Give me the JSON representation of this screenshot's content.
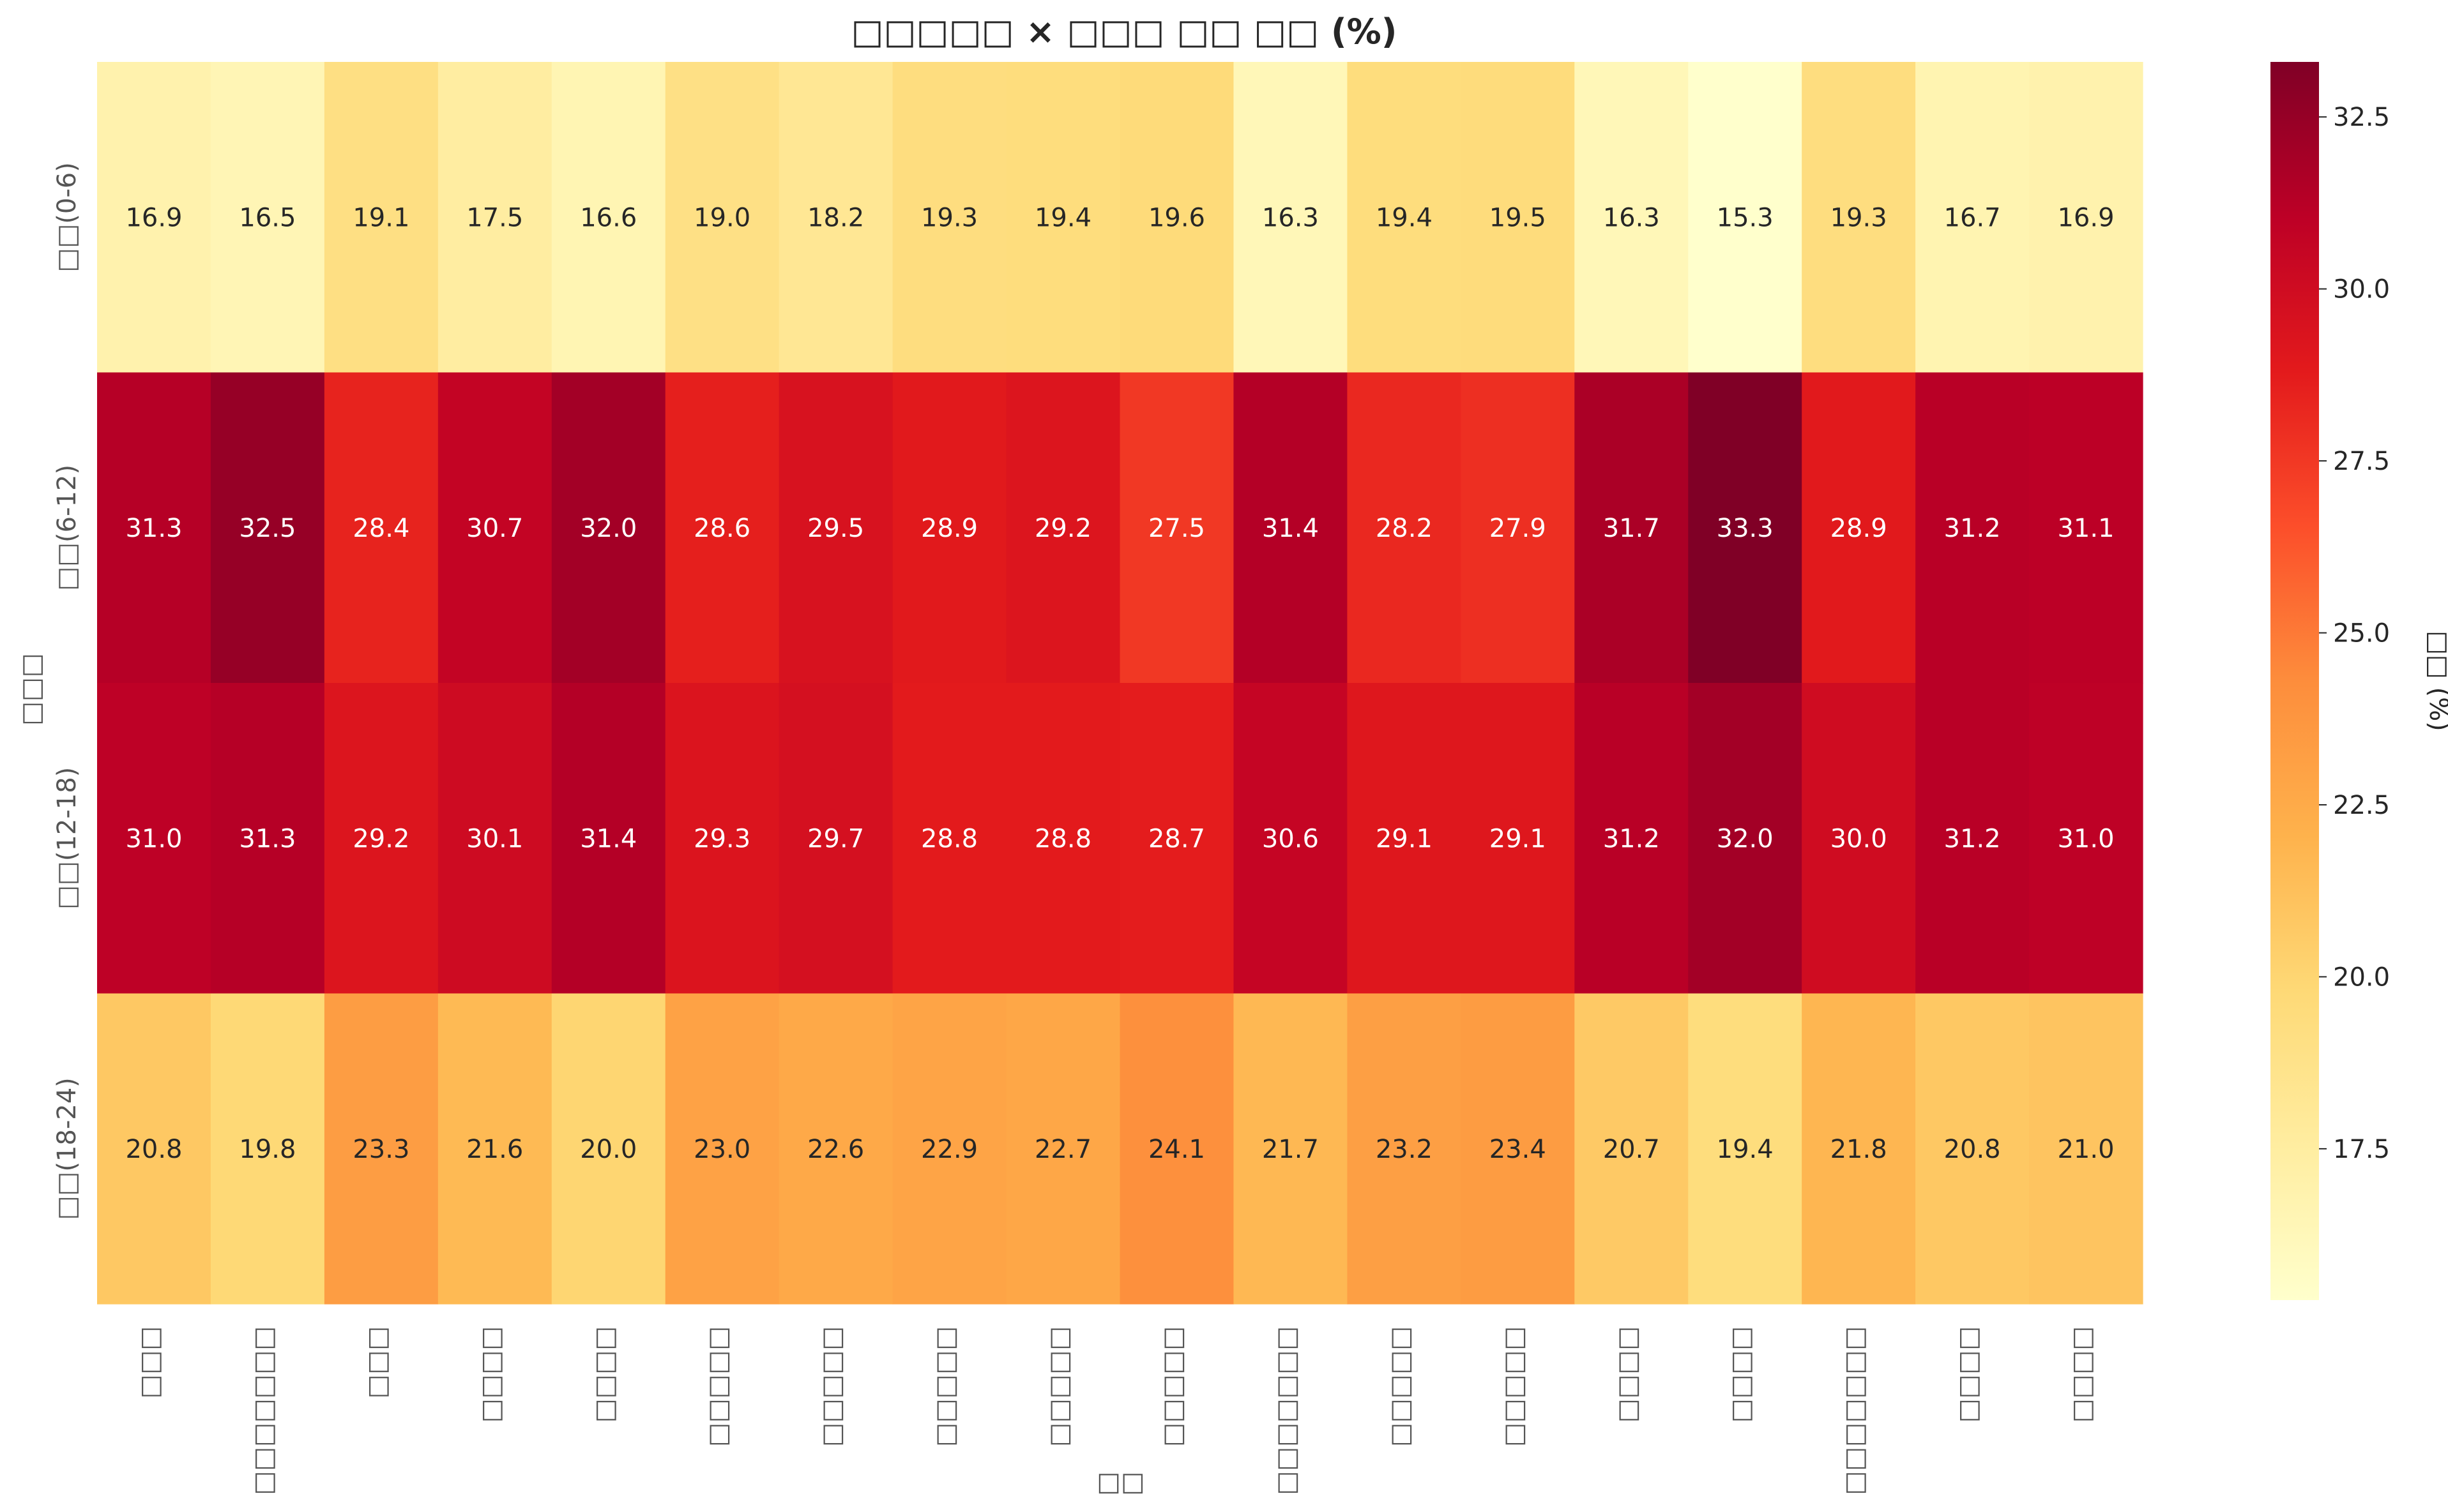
{
  "chart_data": {
    "type": "heatmap",
    "title": "□□□□□ × □□□ □□ □□ (%)",
    "xlabel": "□□",
    "ylabel": "□□□",
    "colorbar_label": "□□ (%)",
    "colormap": "YlOrRd",
    "color_range": [
      15.3,
      33.3
    ],
    "colorbar_ticks": [
      "17.5",
      "20.0",
      "22.5",
      "25.0",
      "27.5",
      "30.0",
      "32.5"
    ],
    "colorbar_tick_values": [
      17.5,
      20.0,
      22.5,
      25.0,
      27.5,
      30.0,
      32.5
    ],
    "columns": [
      "□□□",
      "□□□□□□□",
      "□□□",
      "□□□□",
      "□□□□",
      "□□□□□",
      "□□□□□",
      "□□□□□",
      "□□□□□",
      "□□□□□",
      "□□□□□□□",
      "□□□□□",
      "□□□□□",
      "□□□□",
      "□□□□",
      "□□□□□□□",
      "□□□□",
      "□□□□"
    ],
    "rows": [
      "□□(0-6)",
      "□□(6-12)",
      "□□(12-18)",
      "□□(18-24)"
    ],
    "values": [
      [
        16.9,
        16.5,
        19.1,
        17.5,
        16.6,
        19.0,
        18.2,
        19.3,
        19.4,
        19.6,
        16.3,
        19.4,
        19.5,
        16.3,
        15.3,
        19.3,
        16.7,
        16.9
      ],
      [
        31.3,
        32.5,
        28.4,
        30.7,
        32.0,
        28.6,
        29.5,
        28.9,
        29.2,
        27.5,
        31.4,
        28.2,
        27.9,
        31.7,
        33.3,
        28.9,
        31.2,
        31.1
      ],
      [
        31.0,
        31.3,
        29.2,
        30.1,
        31.4,
        29.3,
        29.7,
        28.8,
        28.8,
        28.7,
        30.6,
        29.1,
        29.1,
        31.2,
        32.0,
        30.0,
        31.2,
        31.0
      ],
      [
        20.8,
        19.8,
        23.3,
        21.6,
        20.0,
        23.0,
        22.6,
        22.9,
        22.7,
        24.1,
        21.7,
        23.2,
        23.4,
        20.7,
        19.4,
        21.8,
        20.8,
        21.0
      ]
    ],
    "value_format": "0.0"
  }
}
